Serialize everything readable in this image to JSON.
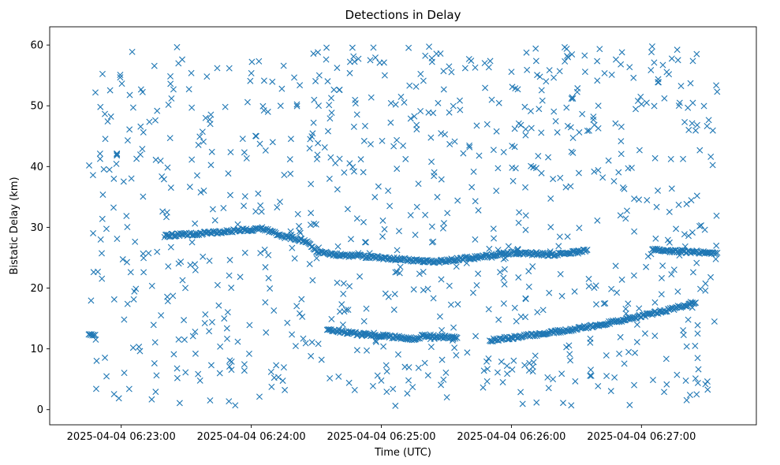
{
  "chart_data": {
    "type": "scatter",
    "title": "Detections in Delay",
    "xlabel": "Time (UTC)",
    "ylabel": "Bistatic Delay (km)",
    "marker": "x",
    "color": "#1f77b4",
    "x_start": "2025-04-04 06:22:45",
    "x_end": "2025-04-04 06:27:35",
    "xlim": [
      "2025-04-04 06:22:27",
      "2025-04-04 06:27:53"
    ],
    "ylim": [
      -2.5,
      63
    ],
    "x_ticks": [
      {
        "label": "2025-04-04 06:23:00",
        "time": "2025-04-04 06:23:00"
      },
      {
        "label": "2025-04-04 06:24:00",
        "time": "2025-04-04 06:24:00"
      },
      {
        "label": "2025-04-04 06:25:00",
        "time": "2025-04-04 06:25:00"
      },
      {
        "label": "2025-04-04 06:26:00",
        "time": "2025-04-04 06:26:00"
      },
      {
        "label": "2025-04-04 06:27:00",
        "time": "2025-04-04 06:27:00"
      }
    ],
    "y_ticks": [
      0,
      10,
      20,
      30,
      40,
      50,
      60
    ],
    "grid": false,
    "tracks": [
      {
        "points": [
          {
            "x": "2025-04-04 06:23:20",
            "y": 28.6
          },
          {
            "x": "2025-04-04 06:23:45",
            "y": 29.2
          },
          {
            "x": "2025-04-04 06:24:05",
            "y": 29.8
          },
          {
            "x": "2025-04-04 06:24:15",
            "y": 28.5
          },
          {
            "x": "2025-04-04 06:24:25",
            "y": 27.8
          },
          {
            "x": "2025-04-04 06:24:30",
            "y": 26.0
          },
          {
            "x": "2025-04-04 06:24:40",
            "y": 25.5
          },
          {
            "x": "2025-04-04 06:25:00",
            "y": 25.0
          },
          {
            "x": "2025-04-04 06:25:25",
            "y": 24.3
          },
          {
            "x": "2025-04-04 06:26:00",
            "y": 25.8
          },
          {
            "x": "2025-04-04 06:26:20",
            "y": 25.5
          },
          {
            "x": "2025-04-04 06:26:35",
            "y": 26.3
          }
        ]
      },
      {
        "points": [
          {
            "x": "2025-04-04 06:22:45",
            "y": 12.3
          },
          {
            "x": "2025-04-04 06:22:48",
            "y": 12.3
          }
        ]
      },
      {
        "points": [
          {
            "x": "2025-04-04 06:24:35",
            "y": 13.2
          },
          {
            "x": "2025-04-04 06:24:50",
            "y": 12.4
          },
          {
            "x": "2025-04-04 06:25:05",
            "y": 12.0
          },
          {
            "x": "2025-04-04 06:25:15",
            "y": 11.6
          },
          {
            "x": "2025-04-04 06:25:20",
            "y": 12.2
          },
          {
            "x": "2025-04-04 06:25:35",
            "y": 11.8
          }
        ]
      },
      {
        "points": [
          {
            "x": "2025-04-04 06:25:50",
            "y": 11.4
          },
          {
            "x": "2025-04-04 06:26:10",
            "y": 12.3
          },
          {
            "x": "2025-04-04 06:26:30",
            "y": 13.3
          },
          {
            "x": "2025-04-04 06:26:50",
            "y": 14.6
          },
          {
            "x": "2025-04-04 06:27:10",
            "y": 16.2
          },
          {
            "x": "2025-04-04 06:27:25",
            "y": 17.6
          }
        ]
      },
      {
        "points": [
          {
            "x": "2025-04-04 06:27:05",
            "y": 26.3
          },
          {
            "x": "2025-04-04 06:27:20",
            "y": 26.0
          },
          {
            "x": "2025-04-04 06:27:35",
            "y": 25.8
          }
        ]
      },
      {
        "points": [
          {
            "x": "2025-04-04 06:22:58",
            "y": 42.0
          },
          {
            "x": "2025-04-04 06:22:58",
            "y": 42.0
          }
        ]
      }
    ],
    "noise_y_range": [
      0.5,
      60
    ],
    "noise_count": 870,
    "noise_seed": 20250404
  }
}
